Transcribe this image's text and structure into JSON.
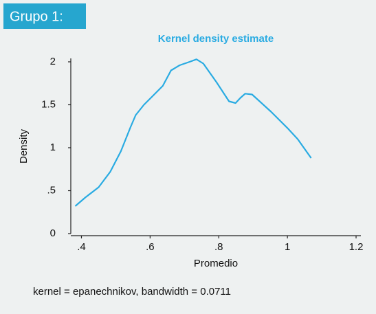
{
  "header": {
    "title": "Grupo 1:"
  },
  "chart_data": {
    "type": "line",
    "title": "Kernel density estimate",
    "x_label": "Promedio",
    "y_label": "Density",
    "note": "kernel = epanechnikov, bandwidth = 0.0711",
    "x": [
      0.382,
      0.411,
      0.45,
      0.484,
      0.515,
      0.543,
      0.558,
      0.582,
      0.607,
      0.637,
      0.661,
      0.686,
      0.715,
      0.735,
      0.755,
      0.794,
      0.83,
      0.849,
      0.863,
      0.877,
      0.897,
      0.952,
      1.0,
      1.03,
      1.069
    ],
    "series": [
      {
        "name": "Density",
        "color": "#29abe2",
        "values": [
          0.32,
          0.42,
          0.54,
          0.72,
          0.96,
          1.24,
          1.38,
          1.5,
          1.6,
          1.72,
          1.9,
          1.96,
          2.0,
          2.03,
          1.98,
          1.76,
          1.54,
          1.52,
          1.58,
          1.63,
          1.62,
          1.42,
          1.23,
          1.1,
          0.88
        ]
      }
    ],
    "xlim": [
      0.369,
      1.214
    ],
    "ylim": [
      0,
      2.04
    ],
    "xticks": [
      {
        "value": 0.4,
        "label": ".4"
      },
      {
        "value": 0.6,
        "label": ".6"
      },
      {
        "value": 0.8,
        "label": ".8"
      },
      1,
      {
        "value": 1.2,
        "label": "1.2"
      }
    ],
    "yticks": [
      0,
      {
        "value": 0.5,
        "label": ".5"
      },
      1,
      {
        "value": 1.5,
        "label": "1.5"
      },
      2
    ]
  }
}
